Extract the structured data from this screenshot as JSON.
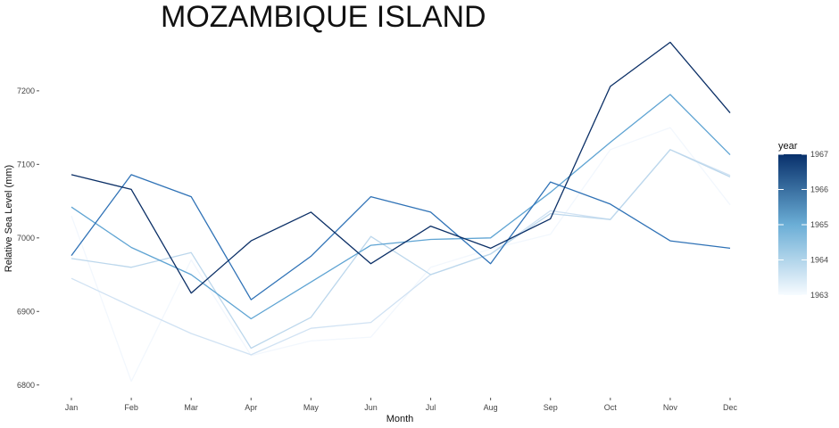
{
  "chart_data": {
    "type": "line",
    "title": "MOZAMBIQUE ISLAND",
    "xlabel": "Month",
    "ylabel": "Relative Sea Level (mm)",
    "categories": [
      "Jan",
      "Feb",
      "Mar",
      "Apr",
      "May",
      "Jun",
      "Jul",
      "Aug",
      "Sep",
      "Oct",
      "Nov",
      "Dec"
    ],
    "yticks": [
      6800,
      6900,
      7000,
      7100,
      7200
    ],
    "ylim": [
      6790,
      7275
    ],
    "grid": false,
    "legend": {
      "title": "year",
      "placement": "right",
      "type": "colorbar",
      "ticks": [
        1963,
        1964,
        1965,
        1966,
        1967
      ],
      "range": [
        1963,
        1967
      ],
      "color_low": "#f7fbff",
      "color_high": "#08306b"
    },
    "series": [
      {
        "year": 1963,
        "color": "#f2f7fd",
        "values": [
          7030,
          6805,
          6970,
          6840,
          6860,
          6865,
          6960,
          6985,
          7005,
          7120,
          7150,
          7045
        ]
      },
      {
        "year": 1963.7,
        "color": "#d0e2f3",
        "values": [
          6945,
          6907,
          6870,
          6841,
          6877,
          6885,
          6950,
          6978,
          7037,
          7025,
          7120,
          7085
        ]
      },
      {
        "year": 1964.3,
        "color": "#bcd7ec",
        "values": [
          6972,
          6960,
          6980,
          6850,
          6892,
          7002,
          6950,
          6978,
          7033,
          7025,
          7120,
          7083
        ]
      },
      {
        "year": 1965,
        "color": "#5fa4d3",
        "values": [
          7042,
          6987,
          6950,
          6890,
          6940,
          6990,
          6998,
          7000,
          7062,
          7130,
          7195,
          7113
        ]
      },
      {
        "year": 1966,
        "color": "#2f72b6",
        "values": [
          6976,
          7086,
          7056,
          6916,
          6975,
          7056,
          7035,
          6965,
          7076,
          7046,
          6996,
          6986
        ]
      },
      {
        "year": 1967,
        "color": "#0b2f66",
        "values": [
          7086,
          7066,
          6925,
          6996,
          7035,
          6965,
          7016,
          6986,
          7026,
          7206,
          7266,
          7170
        ]
      }
    ]
  }
}
